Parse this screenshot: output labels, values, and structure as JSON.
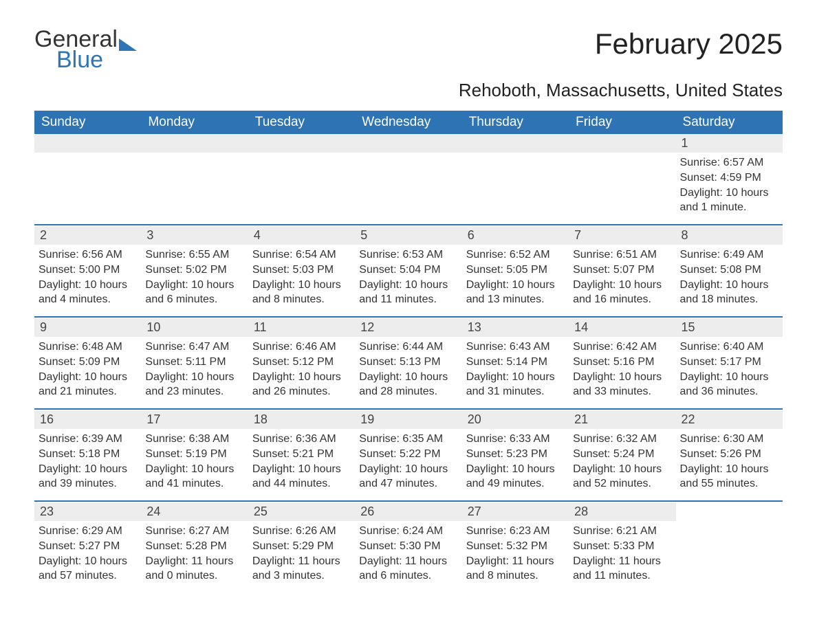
{
  "brand": {
    "part1": "General",
    "part2": "Blue"
  },
  "title": "February 2025",
  "location": "Rehoboth, Massachusetts, United States",
  "colors": {
    "header_bg": "#2e74b5",
    "header_fg": "#ffffff",
    "daynum_bg": "#ededed",
    "accent": "#2e75b6",
    "text": "#333333",
    "page_bg": "#ffffff"
  },
  "weekdays": [
    "Sunday",
    "Monday",
    "Tuesday",
    "Wednesday",
    "Thursday",
    "Friday",
    "Saturday"
  ],
  "weeks": [
    [
      null,
      null,
      null,
      null,
      null,
      null,
      {
        "n": "1",
        "sunrise": "Sunrise: 6:57 AM",
        "sunset": "Sunset: 4:59 PM",
        "daylight": "Daylight: 10 hours and 1 minute."
      }
    ],
    [
      {
        "n": "2",
        "sunrise": "Sunrise: 6:56 AM",
        "sunset": "Sunset: 5:00 PM",
        "daylight": "Daylight: 10 hours and 4 minutes."
      },
      {
        "n": "3",
        "sunrise": "Sunrise: 6:55 AM",
        "sunset": "Sunset: 5:02 PM",
        "daylight": "Daylight: 10 hours and 6 minutes."
      },
      {
        "n": "4",
        "sunrise": "Sunrise: 6:54 AM",
        "sunset": "Sunset: 5:03 PM",
        "daylight": "Daylight: 10 hours and 8 minutes."
      },
      {
        "n": "5",
        "sunrise": "Sunrise: 6:53 AM",
        "sunset": "Sunset: 5:04 PM",
        "daylight": "Daylight: 10 hours and 11 minutes."
      },
      {
        "n": "6",
        "sunrise": "Sunrise: 6:52 AM",
        "sunset": "Sunset: 5:05 PM",
        "daylight": "Daylight: 10 hours and 13 minutes."
      },
      {
        "n": "7",
        "sunrise": "Sunrise: 6:51 AM",
        "sunset": "Sunset: 5:07 PM",
        "daylight": "Daylight: 10 hours and 16 minutes."
      },
      {
        "n": "8",
        "sunrise": "Sunrise: 6:49 AM",
        "sunset": "Sunset: 5:08 PM",
        "daylight": "Daylight: 10 hours and 18 minutes."
      }
    ],
    [
      {
        "n": "9",
        "sunrise": "Sunrise: 6:48 AM",
        "sunset": "Sunset: 5:09 PM",
        "daylight": "Daylight: 10 hours and 21 minutes."
      },
      {
        "n": "10",
        "sunrise": "Sunrise: 6:47 AM",
        "sunset": "Sunset: 5:11 PM",
        "daylight": "Daylight: 10 hours and 23 minutes."
      },
      {
        "n": "11",
        "sunrise": "Sunrise: 6:46 AM",
        "sunset": "Sunset: 5:12 PM",
        "daylight": "Daylight: 10 hours and 26 minutes."
      },
      {
        "n": "12",
        "sunrise": "Sunrise: 6:44 AM",
        "sunset": "Sunset: 5:13 PM",
        "daylight": "Daylight: 10 hours and 28 minutes."
      },
      {
        "n": "13",
        "sunrise": "Sunrise: 6:43 AM",
        "sunset": "Sunset: 5:14 PM",
        "daylight": "Daylight: 10 hours and 31 minutes."
      },
      {
        "n": "14",
        "sunrise": "Sunrise: 6:42 AM",
        "sunset": "Sunset: 5:16 PM",
        "daylight": "Daylight: 10 hours and 33 minutes."
      },
      {
        "n": "15",
        "sunrise": "Sunrise: 6:40 AM",
        "sunset": "Sunset: 5:17 PM",
        "daylight": "Daylight: 10 hours and 36 minutes."
      }
    ],
    [
      {
        "n": "16",
        "sunrise": "Sunrise: 6:39 AM",
        "sunset": "Sunset: 5:18 PM",
        "daylight": "Daylight: 10 hours and 39 minutes."
      },
      {
        "n": "17",
        "sunrise": "Sunrise: 6:38 AM",
        "sunset": "Sunset: 5:19 PM",
        "daylight": "Daylight: 10 hours and 41 minutes."
      },
      {
        "n": "18",
        "sunrise": "Sunrise: 6:36 AM",
        "sunset": "Sunset: 5:21 PM",
        "daylight": "Daylight: 10 hours and 44 minutes."
      },
      {
        "n": "19",
        "sunrise": "Sunrise: 6:35 AM",
        "sunset": "Sunset: 5:22 PM",
        "daylight": "Daylight: 10 hours and 47 minutes."
      },
      {
        "n": "20",
        "sunrise": "Sunrise: 6:33 AM",
        "sunset": "Sunset: 5:23 PM",
        "daylight": "Daylight: 10 hours and 49 minutes."
      },
      {
        "n": "21",
        "sunrise": "Sunrise: 6:32 AM",
        "sunset": "Sunset: 5:24 PM",
        "daylight": "Daylight: 10 hours and 52 minutes."
      },
      {
        "n": "22",
        "sunrise": "Sunrise: 6:30 AM",
        "sunset": "Sunset: 5:26 PM",
        "daylight": "Daylight: 10 hours and 55 minutes."
      }
    ],
    [
      {
        "n": "23",
        "sunrise": "Sunrise: 6:29 AM",
        "sunset": "Sunset: 5:27 PM",
        "daylight": "Daylight: 10 hours and 57 minutes."
      },
      {
        "n": "24",
        "sunrise": "Sunrise: 6:27 AM",
        "sunset": "Sunset: 5:28 PM",
        "daylight": "Daylight: 11 hours and 0 minutes."
      },
      {
        "n": "25",
        "sunrise": "Sunrise: 6:26 AM",
        "sunset": "Sunset: 5:29 PM",
        "daylight": "Daylight: 11 hours and 3 minutes."
      },
      {
        "n": "26",
        "sunrise": "Sunrise: 6:24 AM",
        "sunset": "Sunset: 5:30 PM",
        "daylight": "Daylight: 11 hours and 6 minutes."
      },
      {
        "n": "27",
        "sunrise": "Sunrise: 6:23 AM",
        "sunset": "Sunset: 5:32 PM",
        "daylight": "Daylight: 11 hours and 8 minutes."
      },
      {
        "n": "28",
        "sunrise": "Sunrise: 6:21 AM",
        "sunset": "Sunset: 5:33 PM",
        "daylight": "Daylight: 11 hours and 11 minutes."
      },
      null
    ]
  ]
}
